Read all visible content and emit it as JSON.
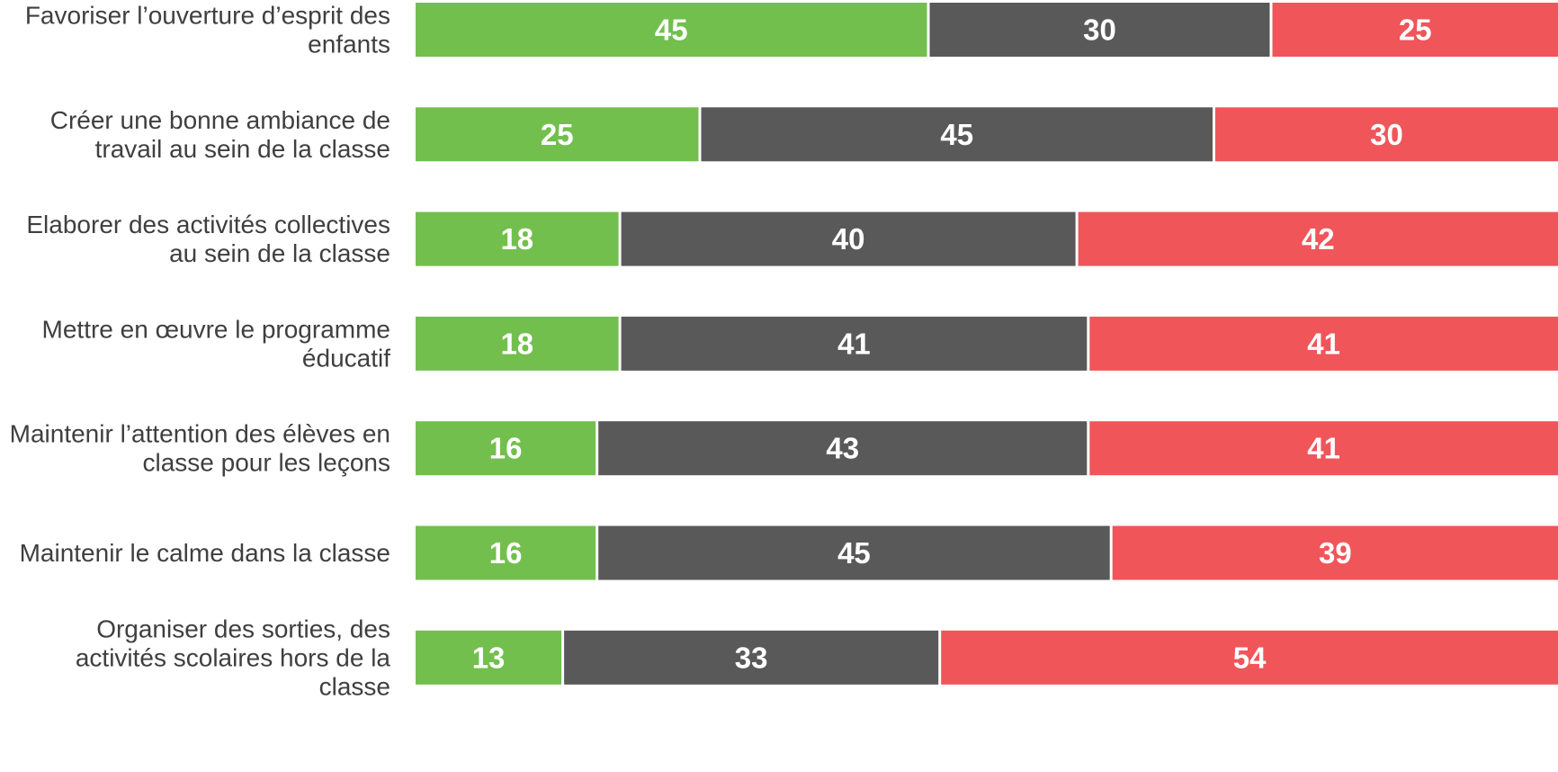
{
  "colors": {
    "series_1": "#72bf4e",
    "series_2": "#595959",
    "series_3": "#f0555a",
    "label_text": "#3f3f3f",
    "value_text": "#ffffff",
    "background": "#ffffff"
  },
  "chart_data": {
    "type": "bar",
    "orientation": "horizontal",
    "stacked": "100%",
    "title": "",
    "xlabel": "",
    "ylabel": "",
    "xlim": [
      0,
      100
    ],
    "grid": false,
    "legend": "none",
    "categories": [
      [
        "Favoriser l’ouverture d’esprit des",
        "enfants"
      ],
      [
        "Créer une bonne ambiance de",
        "travail au sein de la classe"
      ],
      [
        "Elaborer des activités collectives",
        "au sein de la classe"
      ],
      [
        "Mettre en œuvre le programme",
        "éducatif"
      ],
      [
        "Maintenir l’attention des élèves en",
        "classe pour les leçons"
      ],
      [
        "Maintenir le calme dans la classe"
      ],
      [
        "Organiser des sorties, des",
        "activités scolaires hors de la",
        "classe"
      ]
    ],
    "series": [
      {
        "values": [
          45,
          25,
          18,
          18,
          16,
          16,
          13
        ],
        "color": "#72bf4e"
      },
      {
        "values": [
          30,
          45,
          40,
          41,
          43,
          45,
          33
        ],
        "color": "#595959"
      },
      {
        "values": [
          25,
          30,
          42,
          41,
          41,
          39,
          54
        ],
        "color": "#f0555a"
      }
    ]
  }
}
